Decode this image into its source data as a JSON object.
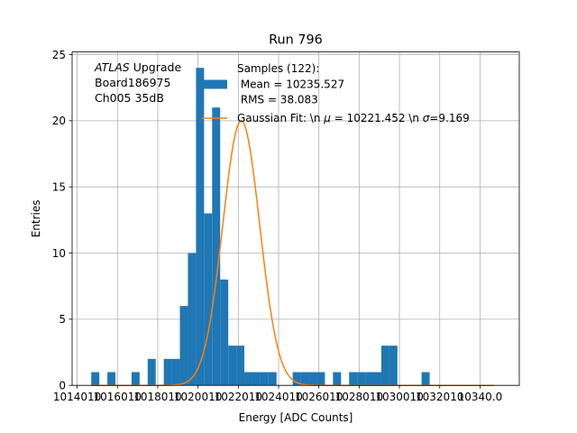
{
  "chart_data": {
    "type": "bar",
    "title": "Run 796",
    "xlabel": "Energy [ADC Counts]",
    "ylabel": "Entries",
    "xlim": [
      10137.5,
      10359.5
    ],
    "ylim": [
      0,
      25.2
    ],
    "grid": true,
    "x_ticks": [
      {
        "value": 10140,
        "label": "1014010"
      },
      {
        "value": 10160,
        "label": "1016010"
      },
      {
        "value": 10180,
        "label": "1018010"
      },
      {
        "value": 10200,
        "label": "1020010"
      },
      {
        "value": 10220,
        "label": "1022010"
      },
      {
        "value": 10240,
        "label": "1024010"
      },
      {
        "value": 10260,
        "label": "1026010"
      },
      {
        "value": 10280,
        "label": "1028010"
      },
      {
        "value": 10300,
        "label": "1030010"
      },
      {
        "value": 10320,
        "label": "1032010"
      },
      {
        "value": 10340,
        "label": "10340.0"
      }
    ],
    "y_ticks": [
      0,
      5,
      10,
      15,
      20,
      25
    ],
    "histogram": {
      "name": "Samples (122):\n Mean = 10235.527\n RMS = 38.083",
      "color": "#1f77b4",
      "bin_left_edges": [
        10147,
        10151,
        10155,
        10159,
        10163,
        10167,
        10171,
        10175,
        10179,
        10183,
        10187,
        10191,
        10195,
        10199,
        10203,
        10207,
        10211,
        10215,
        10219,
        10223,
        10227,
        10231,
        10235,
        10239,
        10243,
        10247,
        10251,
        10255,
        10259,
        10263,
        10267,
        10271,
        10275,
        10279,
        10283,
        10287,
        10291,
        10295,
        10299,
        10303,
        10307,
        10311,
        10315,
        10319,
        10323,
        10327,
        10331,
        10335,
        10339,
        10343
      ],
      "bin_width": 4,
      "counts": [
        1,
        0,
        1,
        0,
        0,
        1,
        0,
        2,
        0,
        2,
        2,
        6,
        10,
        24,
        13,
        21,
        8,
        3,
        3,
        1,
        1,
        1,
        1,
        0,
        0,
        1,
        1,
        1,
        1,
        0,
        1,
        0,
        1,
        1,
        1,
        1,
        3,
        3,
        0,
        0,
        0,
        1,
        0,
        0,
        0,
        0,
        0,
        0,
        0,
        0
      ]
    },
    "gaussian_fit": {
      "name": "Gaussian Fit: \\n $\\mu$ = 10221.452 \\n $\\sigma$=9.169",
      "legend_segments": [
        {
          "text": "Gaussian Fit: \\n ",
          "italic": false
        },
        {
          "text": "μ",
          "italic": true
        },
        {
          "text": " = 10221.452 \\n ",
          "italic": false
        },
        {
          "text": "σ",
          "italic": true
        },
        {
          "text": "=9.169",
          "italic": false
        }
      ],
      "color": "#ff7f0e",
      "amplitude": 20.0,
      "mu": 10221.452,
      "sigma": 9.169,
      "x_range": [
        10147,
        10347
      ]
    },
    "annotation": {
      "lines": [
        [
          {
            "text": "ATLAS",
            "italic": true
          },
          {
            "text": " Upgrade",
            "italic": false
          }
        ],
        [
          {
            "text": " Board186975",
            "italic": false
          }
        ],
        [
          {
            "text": " Ch005 35dB",
            "italic": false
          }
        ]
      ]
    },
    "legend": {
      "placement": "upper center",
      "hist_lines": [
        "Samples (122):",
        " Mean = 10235.527",
        " RMS = 38.083"
      ]
    }
  }
}
